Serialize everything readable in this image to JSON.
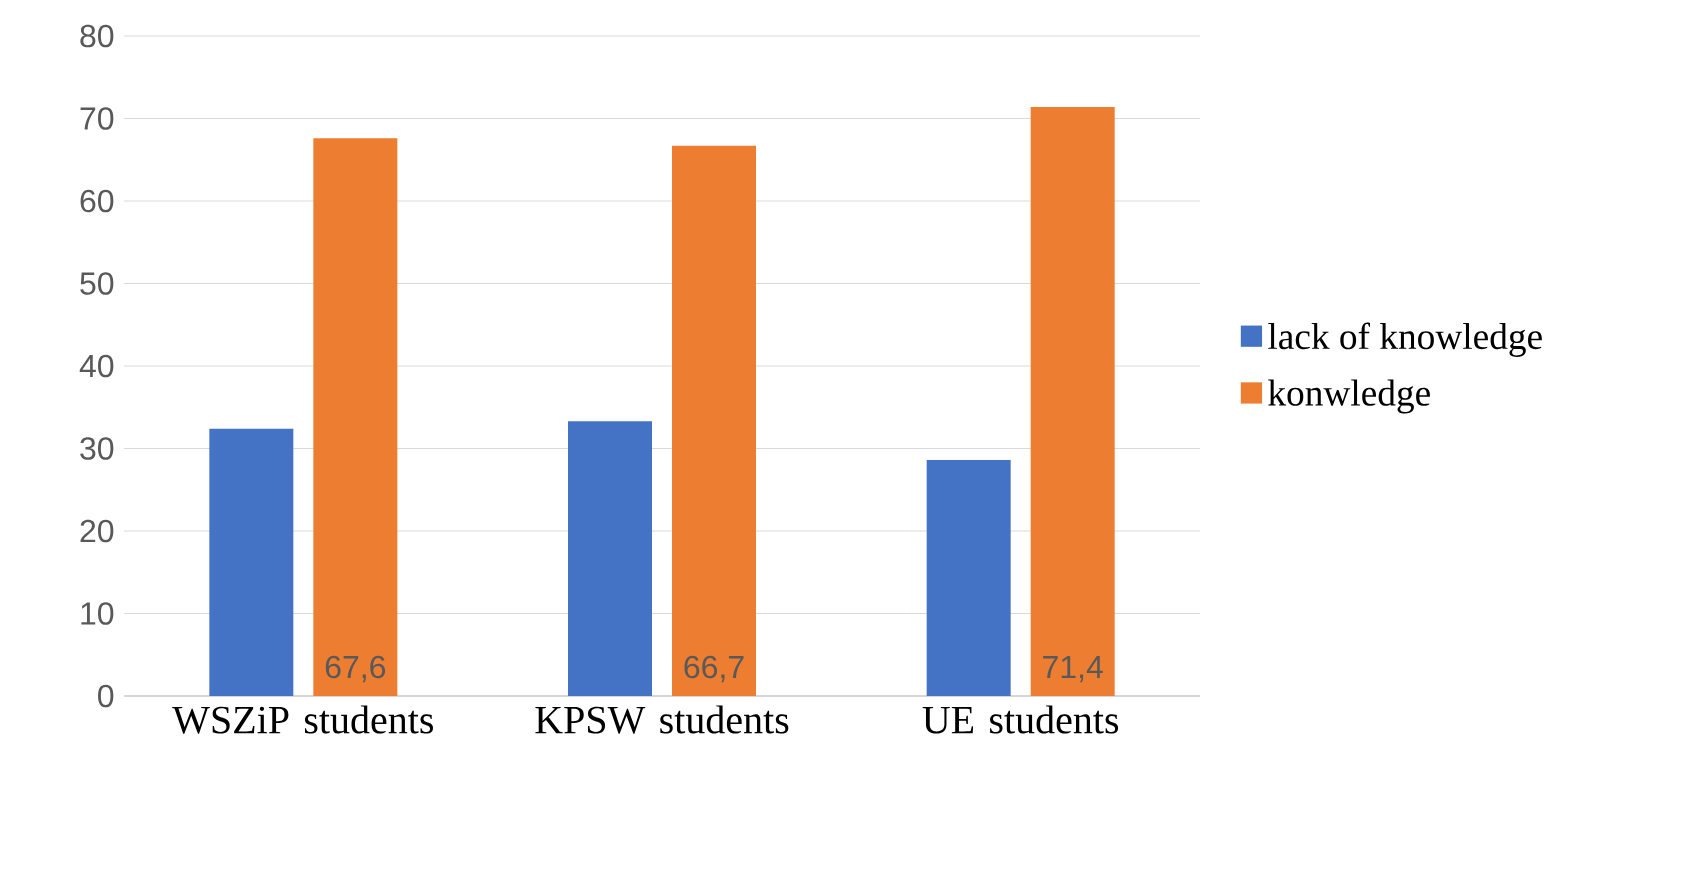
{
  "chart_data": {
    "type": "bar",
    "categories": [
      "WSZiP students",
      "KPSW students",
      "UE students"
    ],
    "series": [
      {
        "name": "lack of knowledge",
        "color": "#4472c4",
        "values": [
          32.4,
          33.3,
          28.6
        ]
      },
      {
        "name": "konwledge",
        "color": "#ed7d31",
        "values": [
          67.6,
          66.7,
          71.4
        ],
        "value_labels": [
          "67,6",
          "66,7",
          "71,4"
        ]
      }
    ],
    "ylim": [
      0,
      80
    ],
    "yticks": [
      0,
      10,
      20,
      30,
      40,
      50,
      60,
      70,
      80
    ],
    "grid": "y",
    "legend": "right"
  }
}
